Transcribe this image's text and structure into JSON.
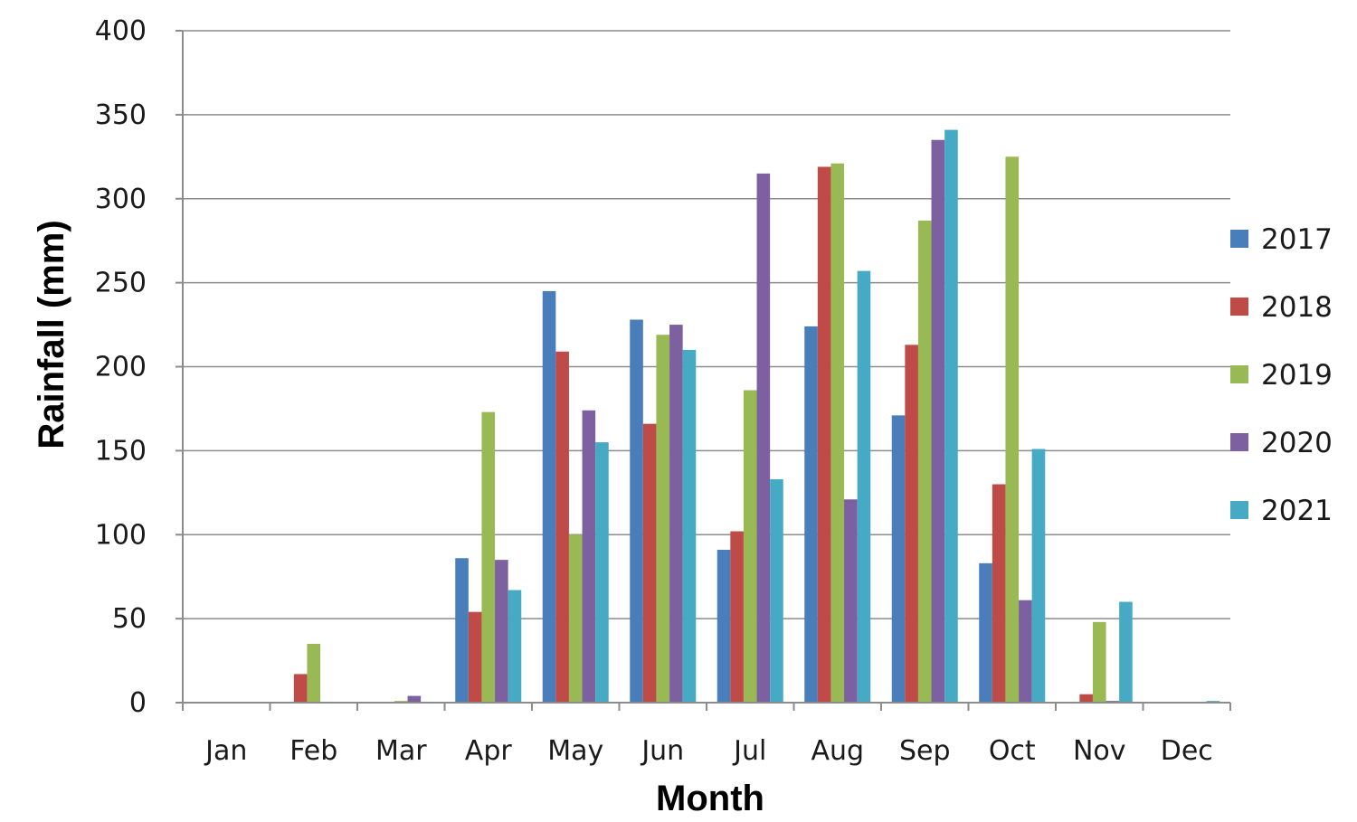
{
  "chart_data": {
    "type": "bar",
    "title": "",
    "xlabel": "Month",
    "ylabel": "Rainfall (mm)",
    "ylim": [
      0,
      400
    ],
    "yticks": [
      0,
      50,
      100,
      150,
      200,
      250,
      300,
      350,
      400
    ],
    "grid": true,
    "legend_position": "right",
    "categories": [
      "Jan",
      "Feb",
      "Mar",
      "Apr",
      "May",
      "Jun",
      "Jul",
      "Aug",
      "Sep",
      "Oct",
      "Nov",
      "Dec"
    ],
    "series": [
      {
        "name": "2017",
        "color": "#4a7ebb",
        "values": [
          0,
          0,
          0,
          86,
          245,
          228,
          91,
          224,
          171,
          83,
          0,
          0
        ]
      },
      {
        "name": "2018",
        "color": "#be4b48",
        "values": [
          0,
          17,
          0,
          54,
          209,
          166,
          102,
          319,
          213,
          130,
          5,
          0
        ]
      },
      {
        "name": "2019",
        "color": "#98b954",
        "values": [
          0,
          35,
          1,
          173,
          100,
          219,
          186,
          321,
          287,
          325,
          48,
          0
        ]
      },
      {
        "name": "2020",
        "color": "#7d60a0",
        "values": [
          0,
          0,
          4,
          85,
          174,
          225,
          315,
          121,
          335,
          61,
          1,
          0
        ]
      },
      {
        "name": "2021",
        "color": "#46aac5",
        "values": [
          0,
          0,
          0,
          67,
          155,
          210,
          133,
          257,
          341,
          151,
          60,
          1
        ]
      }
    ]
  }
}
